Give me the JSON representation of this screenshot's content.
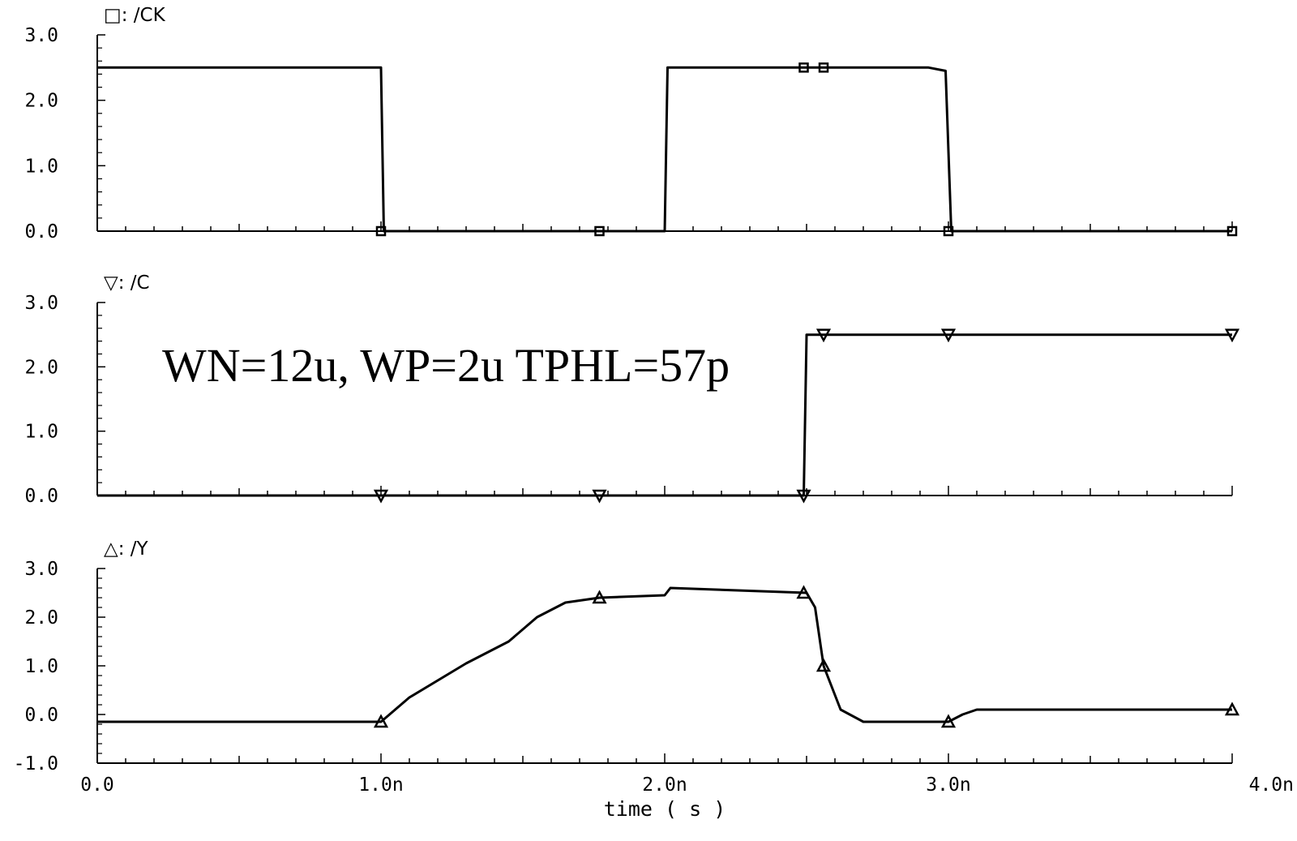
{
  "chart_data": [
    {
      "type": "line",
      "series": [
        {
          "name": "/CK",
          "marker": "square",
          "x": [
            0,
            1.0,
            1.01,
            2.0,
            2.01,
            2.93,
            2.99,
            3.01,
            4.0
          ],
          "values": [
            2.5,
            2.5,
            0.0,
            0.0,
            2.5,
            2.5,
            2.45,
            0.0,
            0.0
          ],
          "marker_x": [
            1.0,
            1.77,
            2.49,
            2.56,
            3.0,
            4.0
          ],
          "marker_y": [
            0.0,
            0.0,
            2.5,
            2.5,
            0.0,
            0.0
          ]
        }
      ],
      "ylim": [
        0,
        3.0
      ],
      "yticks": [
        "3.0",
        "2.0",
        "1.0",
        "0.0"
      ]
    },
    {
      "type": "line",
      "series": [
        {
          "name": "/C",
          "marker": "triangle-down",
          "x": [
            0,
            2.49,
            2.5,
            4.0
          ],
          "values": [
            0.0,
            0.0,
            2.5,
            2.5
          ],
          "marker_x": [
            1.0,
            1.77,
            2.49,
            2.56,
            3.0,
            4.0
          ],
          "marker_y": [
            0.0,
            0.0,
            0.0,
            2.5,
            2.5,
            2.5
          ]
        }
      ],
      "annotation": "WN=12u, WP=2u TPHL=57p",
      "ylim": [
        0,
        3.0
      ],
      "yticks": [
        "3.0",
        "2.0",
        "1.0",
        "0.0"
      ]
    },
    {
      "type": "line",
      "series": [
        {
          "name": "/Y",
          "marker": "triangle-up",
          "x": [
            0,
            1.0,
            1.1,
            1.3,
            1.45,
            1.55,
            1.65,
            1.77,
            2.0,
            2.02,
            2.5,
            2.53,
            2.56,
            2.62,
            2.7,
            3.0,
            3.05,
            3.1,
            4.0
          ],
          "values": [
            -0.15,
            -0.15,
            0.35,
            1.05,
            1.5,
            2.0,
            2.3,
            2.4,
            2.45,
            2.6,
            2.5,
            2.2,
            1.0,
            0.1,
            -0.15,
            -0.15,
            0.0,
            0.1,
            0.1
          ],
          "marker_x": [
            1.0,
            1.77,
            2.49,
            2.56,
            3.0,
            4.0
          ],
          "marker_y": [
            -0.15,
            2.4,
            2.5,
            1.0,
            -0.15,
            0.1
          ]
        }
      ],
      "xlabel": "time ( s )",
      "xticks": [
        "0.0",
        "1.0n",
        "2.0n",
        "3.0n",
        "4.0n"
      ],
      "xlim": [
        0,
        4.0
      ],
      "ylim": [
        -1.0,
        3.0
      ],
      "yticks": [
        "3.0",
        "2.0",
        "1.0",
        "0.0",
        "-1.0"
      ]
    }
  ]
}
